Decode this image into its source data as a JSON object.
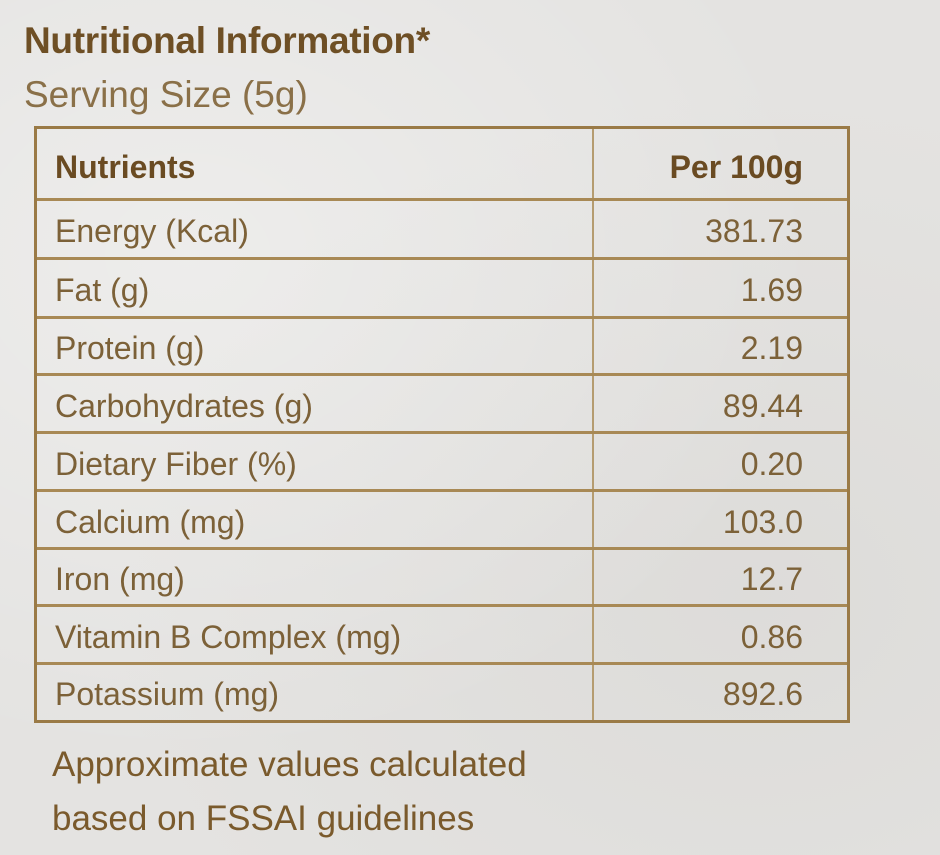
{
  "label": {
    "title": "Nutritional Information*",
    "serving_size": "Serving Size (5g)",
    "table": {
      "header": {
        "name": "Nutrients",
        "value": "Per 100g"
      },
      "rows": [
        {
          "name": "Energy (Kcal)",
          "value": "381.73"
        },
        {
          "name": "Fat (g)",
          "value": "1.69"
        },
        {
          "name": "Protein (g)",
          "value": "2.19"
        },
        {
          "name": "Carbohydrates (g)",
          "value": "89.44"
        },
        {
          "name": "Dietary Fiber (%)",
          "value": "0.20"
        },
        {
          "name": "Calcium (mg)",
          "value": "103.0"
        },
        {
          "name": "Iron (mg)",
          "value": "12.7"
        },
        {
          "name": "Vitamin B Complex (mg)",
          "value": "0.86"
        },
        {
          "name": "Potassium (mg)",
          "value": "892.6"
        }
      ]
    },
    "footnote_line1": "Approximate values calculated",
    "footnote_line2": "based on FSSAI guidelines"
  }
}
